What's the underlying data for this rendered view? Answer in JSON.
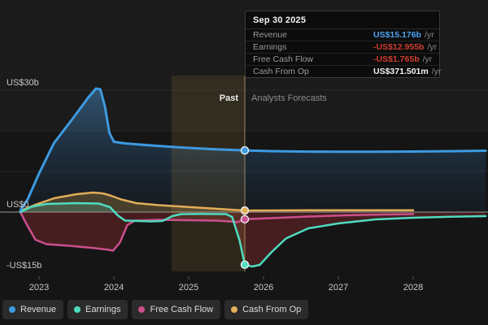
{
  "tooltip": {
    "date": "Sep 30 2025",
    "rows": [
      {
        "label": "Revenue",
        "value": "US$15.176b",
        "unit": "/yr",
        "color": "#4da3f0"
      },
      {
        "label": "Earnings",
        "value": "-US$12.955b",
        "unit": "/yr",
        "color": "#d03d2e"
      },
      {
        "label": "Free Cash Flow",
        "value": "-US$1.765b",
        "unit": "/yr",
        "color": "#d03d2e"
      },
      {
        "label": "Cash From Op",
        "value": "US$371.501m",
        "unit": "/yr",
        "color": "#f2f2f2"
      }
    ]
  },
  "annotations": {
    "past_label": "Past",
    "forecast_label": "Analysts Forecasts"
  },
  "legend": [
    {
      "label": "Revenue",
      "color": "#3d9ae0"
    },
    {
      "label": "Earnings",
      "color": "#4fdcc0"
    },
    {
      "label": "Free Cash Flow",
      "color": "#cb4f8d"
    },
    {
      "label": "Cash From Op",
      "color": "#e2ae58"
    }
  ],
  "chart_data": {
    "type": "line",
    "title": "Past and forecast financials",
    "x_unit": "year",
    "xlim": [
      2022.75,
      2028.97
    ],
    "ylim": [
      -16.8,
      33.6
    ],
    "x_ticks": [
      2023,
      2024,
      2025,
      2026,
      2027,
      2028
    ],
    "y_axis_labels": [
      {
        "text": "US$30b",
        "value": 30
      },
      {
        "text": "US$0",
        "value": 0
      },
      {
        "text": "-US$15b",
        "value": -15
      }
    ],
    "gridline_values": [
      30,
      20,
      10
    ],
    "highlight_window": [
      2024.77,
      2025.75
    ],
    "divider": 2025.75,
    "marker_date": "Sep 30 2025",
    "negative_fill": "rgba(150,45,50,0.38)",
    "series": [
      {
        "name": "Revenue",
        "color": "#3d9ae0",
        "width": 3,
        "area": "gradient",
        "marker_value": 15.176,
        "points": [
          [
            2022.75,
            0.4
          ],
          [
            2022.85,
            3.2
          ],
          [
            2023.0,
            9.5
          ],
          [
            2023.2,
            17.0
          ],
          [
            2023.45,
            23.0
          ],
          [
            2023.65,
            28.0
          ],
          [
            2023.76,
            30.4
          ],
          [
            2023.82,
            30.2
          ],
          [
            2023.88,
            26.0
          ],
          [
            2023.94,
            19.5
          ],
          [
            2024.0,
            17.3
          ],
          [
            2024.15,
            16.9
          ],
          [
            2024.5,
            16.4
          ],
          [
            2024.9,
            15.9
          ],
          [
            2025.3,
            15.5
          ],
          [
            2025.75,
            15.176
          ],
          [
            2026.1,
            15.0
          ],
          [
            2026.5,
            14.9
          ],
          [
            2027.0,
            14.85
          ],
          [
            2027.5,
            14.85
          ],
          [
            2028.0,
            14.9
          ],
          [
            2028.6,
            15.0
          ],
          [
            2028.97,
            15.1
          ]
        ]
      },
      {
        "name": "Earnings",
        "color": "#4fdcc0",
        "width": 2.5,
        "area": "rgba(80,165,150,0.30)",
        "marker_value": -12.955,
        "points": [
          [
            2022.75,
            0.0
          ],
          [
            2022.9,
            1.3
          ],
          [
            2023.1,
            2.0
          ],
          [
            2023.5,
            2.2
          ],
          [
            2023.8,
            2.1
          ],
          [
            2023.95,
            1.2
          ],
          [
            2024.05,
            -0.8
          ],
          [
            2024.15,
            -2.1
          ],
          [
            2024.5,
            -2.3
          ],
          [
            2024.65,
            -2.2
          ],
          [
            2024.78,
            -1.0
          ],
          [
            2024.9,
            -0.5
          ],
          [
            2025.2,
            -0.45
          ],
          [
            2025.5,
            -0.5
          ],
          [
            2025.58,
            -1.2
          ],
          [
            2025.68,
            -7.0
          ],
          [
            2025.75,
            -12.955
          ],
          [
            2025.85,
            -13.4
          ],
          [
            2025.95,
            -13.0
          ],
          [
            2026.1,
            -10.0
          ],
          [
            2026.3,
            -6.5
          ],
          [
            2026.6,
            -4.0
          ],
          [
            2027.0,
            -2.8
          ],
          [
            2027.5,
            -1.8
          ],
          [
            2028.0,
            -1.4
          ],
          [
            2028.5,
            -1.15
          ],
          [
            2028.97,
            -1.0
          ]
        ]
      },
      {
        "name": "Free Cash Flow",
        "color": "#cb4f8d",
        "width": 2.5,
        "area": null,
        "marker_value": -1.765,
        "points": [
          [
            2022.75,
            0.0
          ],
          [
            2022.82,
            -2.5
          ],
          [
            2022.95,
            -6.8
          ],
          [
            2023.1,
            -7.9
          ],
          [
            2023.4,
            -8.3
          ],
          [
            2023.7,
            -8.8
          ],
          [
            2023.9,
            -9.2
          ],
          [
            2023.99,
            -9.5
          ],
          [
            2024.08,
            -7.5
          ],
          [
            2024.18,
            -3.2
          ],
          [
            2024.28,
            -2.1
          ],
          [
            2024.6,
            -1.9
          ],
          [
            2024.95,
            -2.0
          ],
          [
            2025.35,
            -2.1
          ],
          [
            2025.55,
            -2.3
          ],
          [
            2025.65,
            -2.5
          ],
          [
            2025.75,
            -1.765
          ],
          [
            2026.1,
            -1.5
          ],
          [
            2026.6,
            -1.1
          ],
          [
            2027.1,
            -0.8
          ],
          [
            2027.6,
            -0.6
          ],
          [
            2028.0,
            -0.5
          ]
        ]
      },
      {
        "name": "Cash From Op",
        "color": "#e2ae58",
        "width": 2.5,
        "area": "rgba(205,155,70,0.28)",
        "marker_value": 0.3715,
        "points": [
          [
            2022.75,
            0.3
          ],
          [
            2022.95,
            1.8
          ],
          [
            2023.2,
            3.4
          ],
          [
            2023.5,
            4.4
          ],
          [
            2023.72,
            4.8
          ],
          [
            2023.85,
            4.6
          ],
          [
            2023.95,
            4.1
          ],
          [
            2024.1,
            3.1
          ],
          [
            2024.3,
            2.2
          ],
          [
            2024.6,
            1.7
          ],
          [
            2024.95,
            1.3
          ],
          [
            2025.3,
            0.9
          ],
          [
            2025.55,
            0.6
          ],
          [
            2025.75,
            0.3715
          ],
          [
            2026.1,
            0.4
          ],
          [
            2026.6,
            0.45
          ],
          [
            2027.2,
            0.45
          ],
          [
            2028.0,
            0.45
          ]
        ]
      }
    ]
  }
}
